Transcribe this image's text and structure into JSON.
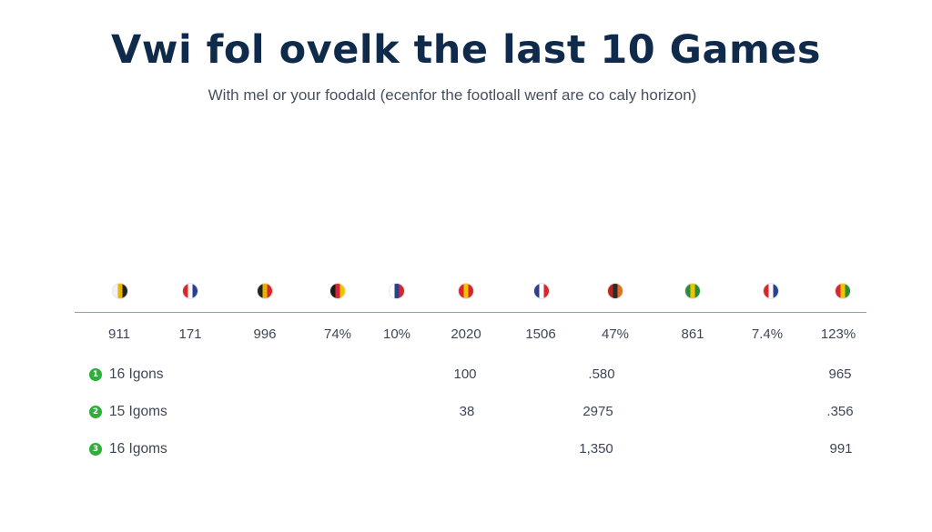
{
  "header": {
    "title": "Vwi fol ovelk the last 10 Games",
    "subtitle": "With mel or your foodald (ecenfor the footloall wenf are co caly horizon)"
  },
  "flags": [
    {
      "name": "flag-1-icon",
      "colors": [
        "#f2f2f2",
        "#e8b400",
        "#222222"
      ]
    },
    {
      "name": "flag-2-icon",
      "colors": [
        "#d7262e",
        "#ffffff",
        "#2b3f8f"
      ]
    },
    {
      "name": "flag-3-icon",
      "colors": [
        "#222222",
        "#e8b400",
        "#d7262e"
      ]
    },
    {
      "name": "flag-4-icon",
      "colors": [
        "#1a1a1a",
        "#d7262e",
        "#f1c400"
      ]
    },
    {
      "name": "flag-5-icon",
      "colors": [
        "#ffffff",
        "#2b3f8f",
        "#d7262e"
      ]
    },
    {
      "name": "flag-6-icon",
      "colors": [
        "#d7262e",
        "#f1c400",
        "#d7262e"
      ]
    },
    {
      "name": "flag-7-icon",
      "colors": [
        "#2b3f8f",
        "#ffffff",
        "#d7262e"
      ]
    },
    {
      "name": "flag-8-icon",
      "colors": [
        "#b3261e",
        "#2a2a2a",
        "#e86a1a"
      ]
    },
    {
      "name": "flag-9-icon",
      "colors": [
        "#2e8b3a",
        "#f1c400",
        "#2e8b3a"
      ]
    },
    {
      "name": "flag-10-icon",
      "colors": [
        "#d7262e",
        "#ffffff",
        "#2b3f8f"
      ]
    },
    {
      "name": "flag-11-icon",
      "colors": [
        "#d7262e",
        "#f1c400",
        "#2e8b3a"
      ]
    }
  ],
  "stats": [
    "911",
    "171",
    "996",
    "74%",
    "10%",
    "2020",
    "1506",
    "47%",
    "861",
    "7.4%",
    "123%"
  ],
  "legend": [
    {
      "badge": "1",
      "label": "16 Igons",
      "values": [
        "100",
        ".580",
        "965"
      ]
    },
    {
      "badge": "2",
      "label": "15 Igoms",
      "values": [
        "38",
        "2975",
        ".356"
      ]
    },
    {
      "badge": "3",
      "label": "16 Igoms",
      "values": [
        "",
        "1,350",
        "991"
      ]
    }
  ],
  "colors": {
    "title": "#0f2a4a",
    "text": "#3d4656",
    "divider": "#8ca0bd",
    "badge": "#2fae3a"
  }
}
